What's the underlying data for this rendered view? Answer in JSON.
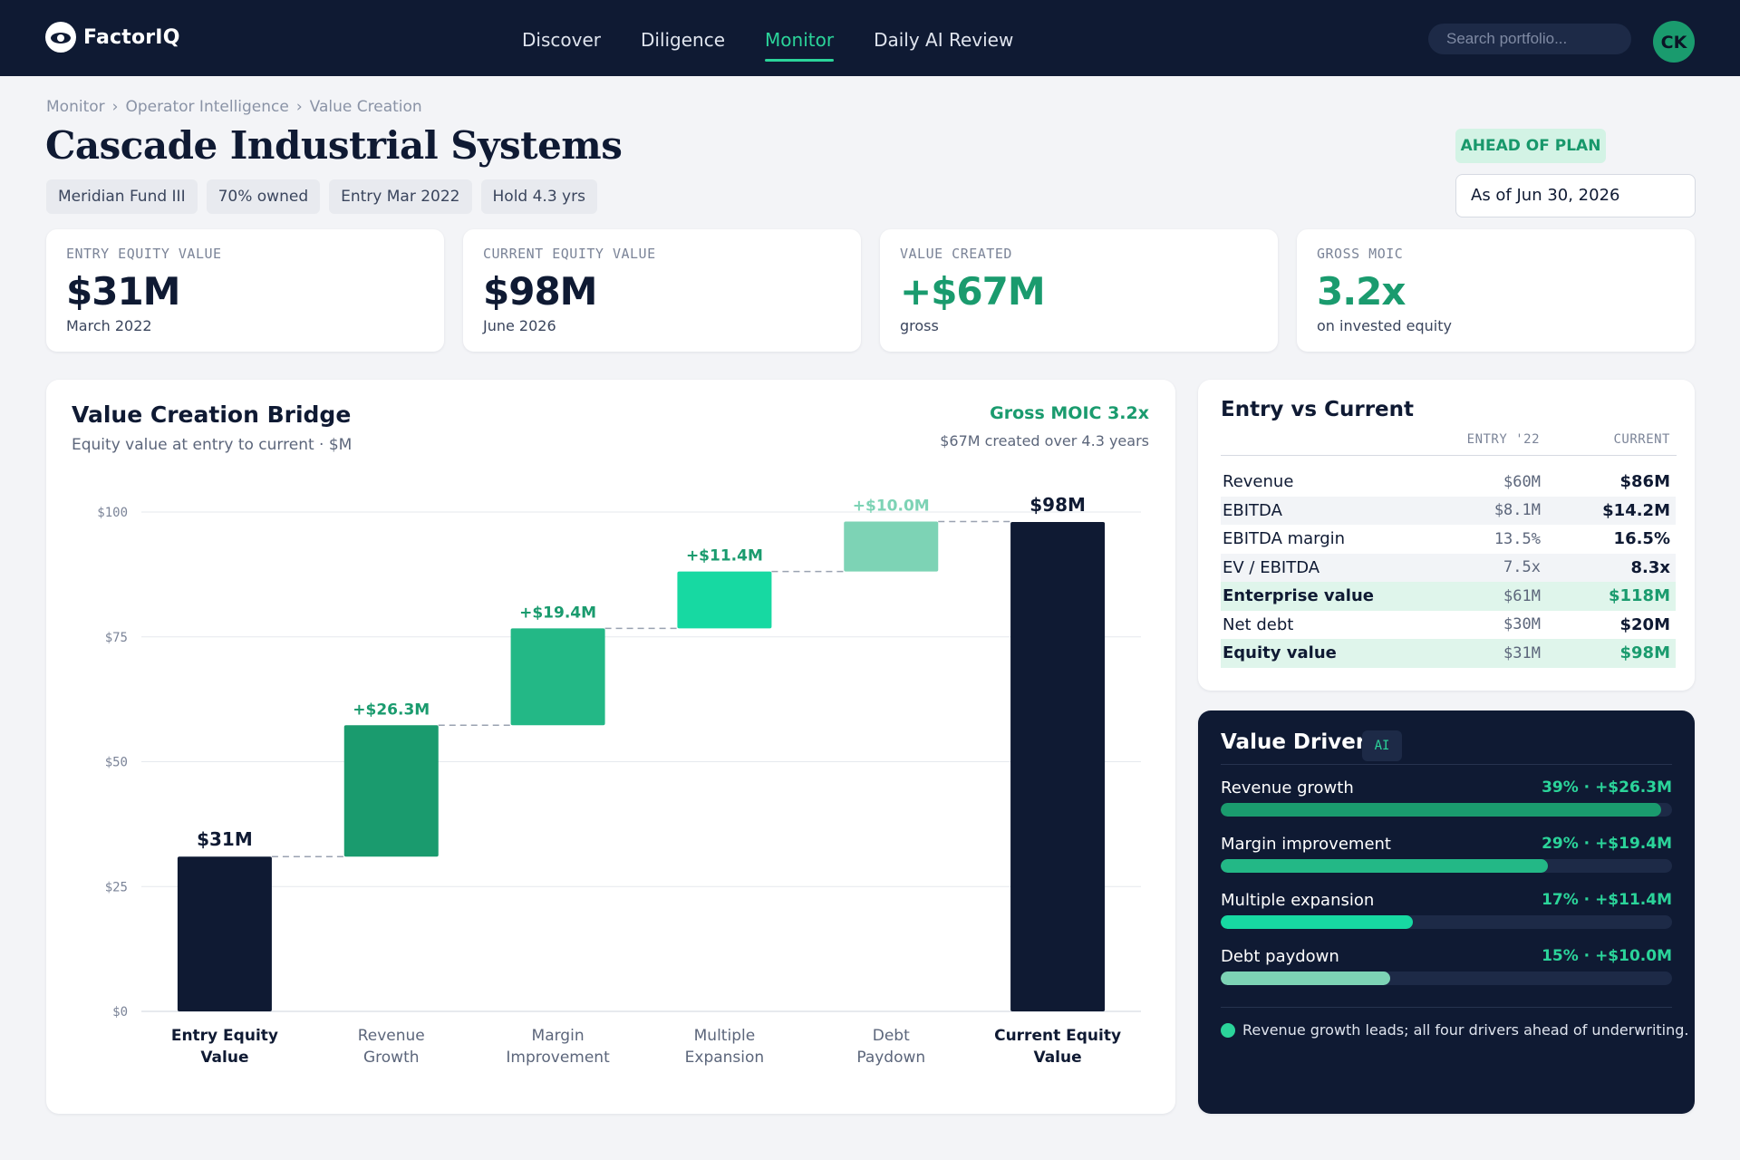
{
  "nav": {
    "brand": "FactorIQ",
    "links": [
      "Discover",
      "Diligence",
      "Monitor",
      "Daily AI Review"
    ],
    "search_placeholder": "Search portfolio...",
    "avatar_initials": "CK"
  },
  "breadcrumb": [
    "Monitor",
    "Operator Intelligence",
    "Value Creation"
  ],
  "page": {
    "title": "Cascade Industrial Systems",
    "tags": [
      "Meridian Fund III",
      "70% owned",
      "Entry Mar 2022",
      "Hold 4.3 yrs"
    ],
    "status": "AHEAD OF PLAN",
    "as_of": "As of Jun 30, 2026"
  },
  "kpis": [
    {
      "label": "ENTRY EQUITY VALUE",
      "value": "$31M",
      "sub": "March 2022"
    },
    {
      "label": "CURRENT EQUITY VALUE",
      "value": "$98M",
      "sub": "June 2026"
    },
    {
      "label": "VALUE CREATED",
      "value": "+$67M",
      "sub": "gross"
    },
    {
      "label": "GROSS MOIC",
      "value": "3.2x",
      "sub": "on invested equity"
    }
  ],
  "bridge": {
    "title": "Value Creation Bridge",
    "subtitle": "Equity value at entry to current · $M",
    "moic": "Gross MOIC 3.2x",
    "moic_sub": "$67M created over 4.3 years"
  },
  "chart_data": {
    "type": "bar",
    "subtype": "waterfall",
    "categories": [
      "Entry Equity Value",
      "Revenue Growth",
      "Margin Improvement",
      "Multiple Expansion",
      "Debt Paydown",
      "Current Equity Value"
    ],
    "values": [
      31,
      26.3,
      19.4,
      11.4,
      10.0,
      98
    ],
    "kinds": [
      "total",
      "delta",
      "delta",
      "delta",
      "delta",
      "total"
    ],
    "data_labels": [
      "$31M",
      "+$26.3M",
      "+$19.4M",
      "+$11.4M",
      "+$10.0M",
      "$98M"
    ],
    "yticks": [
      "$0",
      "$25",
      "$50",
      "$75",
      "$100"
    ],
    "ylim": [
      0,
      100
    ],
    "grid": true,
    "colors": [
      "#0f1a33",
      "#1a9b6e",
      "#23b886",
      "#17d9a2",
      "#7dd3b5",
      "#0f1a33"
    ],
    "label_colors": [
      "#0f1a33",
      "#1a9b6e",
      "#1a9b6e",
      "#1a9b6e",
      "#7dd3b5",
      "#0f1a33"
    ]
  },
  "entry_vs_current": {
    "title": "Entry vs Current",
    "col_entry": "ENTRY '22",
    "col_current": "CURRENT",
    "rows": [
      {
        "metric": "Revenue",
        "entry": "$60M",
        "current": "$86M"
      },
      {
        "metric": "EBITDA",
        "entry": "$8.1M",
        "current": "$14.2M"
      },
      {
        "metric": "EBITDA margin",
        "entry": "13.5%",
        "current": "16.5%"
      },
      {
        "metric": "EV / EBITDA",
        "entry": "7.5x",
        "current": "8.3x"
      },
      {
        "metric": "Enterprise value",
        "entry": "$61M",
        "current": "$118M"
      },
      {
        "metric": "Net debt",
        "entry": "$30M",
        "current": "$20M"
      },
      {
        "metric": "Equity value",
        "entry": "$31M",
        "current": "$98M"
      }
    ]
  },
  "drivers": {
    "title": "Value Drivers",
    "badge": "AI",
    "items": [
      {
        "label": "Revenue growth",
        "pct": 39,
        "value": "39% · +$26.3M",
        "color": "#1a9b6e"
      },
      {
        "label": "Margin improvement",
        "pct": 29,
        "value": "29% · +$19.4M",
        "color": "#23b886"
      },
      {
        "label": "Multiple expansion",
        "pct": 17,
        "value": "17% · +$11.4M",
        "color": "#17d9a2"
      },
      {
        "label": "Debt paydown",
        "pct": 15,
        "value": "15% · +$10.0M",
        "color": "#7dd3b5"
      }
    ],
    "note": "Revenue growth leads; all four drivers ahead of underwriting."
  }
}
